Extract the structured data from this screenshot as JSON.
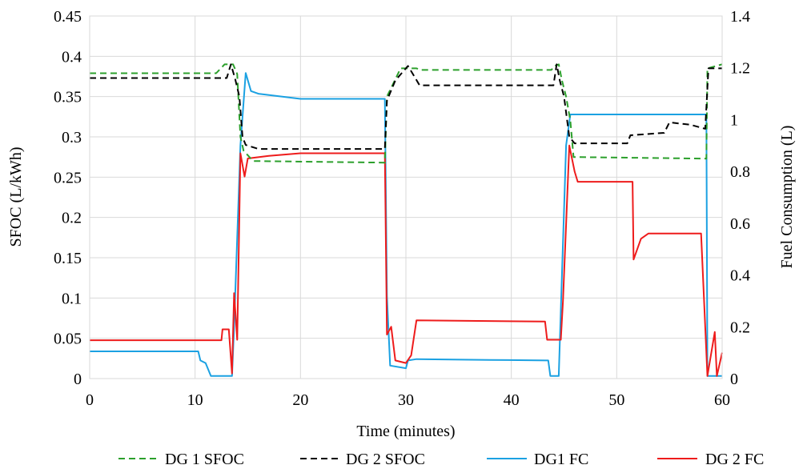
{
  "chart_data": {
    "type": "line",
    "title": "",
    "xlabel": "Time (minutes)",
    "ylabel_left": "SFOC (L/kWh)",
    "ylabel_right": "Fuel Consumption (L)",
    "xlim": [
      0,
      60
    ],
    "ylim_left": [
      0,
      0.45
    ],
    "ylim_right": [
      0,
      1.4
    ],
    "x_ticks": [
      "0",
      "10",
      "20",
      "30",
      "40",
      "50",
      "60"
    ],
    "y_left_ticks": [
      "0",
      "0.05",
      "0.1",
      "0.15",
      "0.2",
      "0.25",
      "0.3",
      "0.35",
      "0.4",
      "0.45"
    ],
    "y_right_ticks": [
      "0",
      "0.2",
      "0.4",
      "0.6",
      "0.8",
      "1",
      "1.2",
      "1.4"
    ],
    "grid": "horizontal and vertical",
    "legend_position": "bottom",
    "series": [
      {
        "name": "DG 1 SFOC",
        "axis": "left",
        "color": "#2ca02c",
        "style": "dashed",
        "points": [
          [
            0,
            0.379
          ],
          [
            12,
            0.379
          ],
          [
            12.8,
            0.39
          ],
          [
            13.6,
            0.39
          ],
          [
            14.0,
            0.378
          ],
          [
            14.3,
            0.3
          ],
          [
            14.6,
            0.283
          ],
          [
            15.5,
            0.27
          ],
          [
            28,
            0.268
          ],
          [
            28.2,
            0.35
          ],
          [
            29.5,
            0.385
          ],
          [
            31,
            0.385
          ],
          [
            31.4,
            0.383
          ],
          [
            43.8,
            0.383
          ],
          [
            44.1,
            0.388
          ],
          [
            44.5,
            0.39
          ],
          [
            44.8,
            0.37
          ],
          [
            45.2,
            0.35
          ],
          [
            45.6,
            0.32
          ],
          [
            45.9,
            0.275
          ],
          [
            58.5,
            0.273
          ],
          [
            58.6,
            0.385
          ],
          [
            60,
            0.39
          ]
        ]
      },
      {
        "name": "DG 2 SFOC",
        "axis": "left",
        "color": "#000000",
        "style": "dashed",
        "points": [
          [
            0,
            0.373
          ],
          [
            13,
            0.373
          ],
          [
            13.4,
            0.39
          ],
          [
            13.8,
            0.372
          ],
          [
            14.2,
            0.35
          ],
          [
            14.5,
            0.3
          ],
          [
            14.8,
            0.29
          ],
          [
            16,
            0.285
          ],
          [
            28,
            0.285
          ],
          [
            28.2,
            0.345
          ],
          [
            29,
            0.37
          ],
          [
            30.2,
            0.388
          ],
          [
            30.8,
            0.375
          ],
          [
            31.3,
            0.364
          ],
          [
            44,
            0.364
          ],
          [
            44.3,
            0.39
          ],
          [
            44.6,
            0.37
          ],
          [
            45,
            0.35
          ],
          [
            45.5,
            0.3
          ],
          [
            46,
            0.292
          ],
          [
            51,
            0.292
          ],
          [
            51.3,
            0.302
          ],
          [
            54.5,
            0.305
          ],
          [
            55,
            0.318
          ],
          [
            57,
            0.315
          ],
          [
            58.4,
            0.31
          ],
          [
            58.7,
            0.385
          ],
          [
            60,
            0.385
          ]
        ]
      },
      {
        "name": "DG1 FC",
        "axis": "right",
        "color": "#1ba1e2",
        "style": "solid",
        "points": [
          [
            0,
            0.105
          ],
          [
            10.3,
            0.105
          ],
          [
            10.5,
            0.07
          ],
          [
            11,
            0.06
          ],
          [
            11.5,
            0.01
          ],
          [
            13.5,
            0.01
          ],
          [
            13.7,
            0.2
          ],
          [
            14.3,
            0.9
          ],
          [
            14.8,
            1.18
          ],
          [
            15.3,
            1.11
          ],
          [
            16,
            1.1
          ],
          [
            20,
            1.08
          ],
          [
            28,
            1.08
          ],
          [
            28.2,
            0.32
          ],
          [
            28.5,
            0.05
          ],
          [
            30,
            0.04
          ],
          [
            30.2,
            0.07
          ],
          [
            31,
            0.075
          ],
          [
            38,
            0.072
          ],
          [
            43.5,
            0.07
          ],
          [
            43.7,
            0.01
          ],
          [
            44.5,
            0.01
          ],
          [
            44.8,
            0.4
          ],
          [
            45.2,
            0.9
          ],
          [
            45.6,
            1.02
          ],
          [
            58.5,
            1.02
          ],
          [
            58.6,
            0.01
          ],
          [
            60,
            0.01
          ]
        ]
      },
      {
        "name": "DG 2 FC",
        "axis": "right",
        "color": "#ee1c1c",
        "style": "solid",
        "points": [
          [
            0,
            0.148
          ],
          [
            12.5,
            0.148
          ],
          [
            12.6,
            0.19
          ],
          [
            13.2,
            0.19
          ],
          [
            13.5,
            0.02
          ],
          [
            13.7,
            0.33
          ],
          [
            14,
            0.15
          ],
          [
            14.3,
            0.87
          ],
          [
            14.7,
            0.78
          ],
          [
            15,
            0.85
          ],
          [
            17,
            0.86
          ],
          [
            20,
            0.87
          ],
          [
            28,
            0.87
          ],
          [
            28.2,
            0.17
          ],
          [
            28.6,
            0.2
          ],
          [
            29,
            0.07
          ],
          [
            30,
            0.06
          ],
          [
            30.5,
            0.09
          ],
          [
            31,
            0.225
          ],
          [
            43.2,
            0.22
          ],
          [
            43.4,
            0.15
          ],
          [
            44.7,
            0.15
          ],
          [
            44.9,
            0.3
          ],
          [
            45.5,
            0.9
          ],
          [
            46,
            0.8
          ],
          [
            46.3,
            0.76
          ],
          [
            51.5,
            0.76
          ],
          [
            51.6,
            0.46
          ],
          [
            52.3,
            0.54
          ],
          [
            53,
            0.56
          ],
          [
            58,
            0.56
          ],
          [
            58.6,
            0.01
          ],
          [
            59.3,
            0.18
          ],
          [
            59.5,
            0.01
          ],
          [
            60,
            0.1
          ]
        ]
      }
    ],
    "legend": [
      {
        "label": "DG 1 SFOC",
        "color": "#2ca02c",
        "style": "dashed"
      },
      {
        "label": "DG 2 SFOC",
        "color": "#000000",
        "style": "dashed"
      },
      {
        "label": "DG1 FC",
        "color": "#1ba1e2",
        "style": "solid"
      },
      {
        "label": "DG 2 FC",
        "color": "#ee1c1c",
        "style": "solid"
      }
    ]
  }
}
